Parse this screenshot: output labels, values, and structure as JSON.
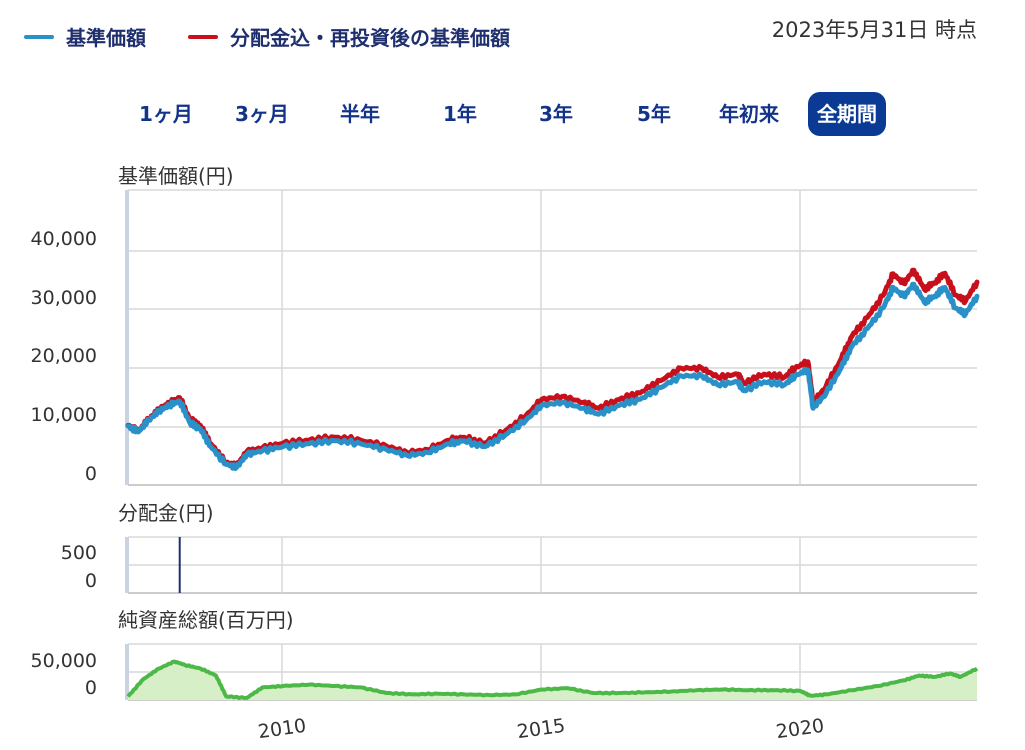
{
  "legend": {
    "items": [
      {
        "label": "基準価額",
        "color": "#2a90c8"
      },
      {
        "label": "分配金込・再投資後の基準価額",
        "color": "#c8101c"
      }
    ]
  },
  "as_of": "2023年5月31日 時点",
  "tabs": [
    {
      "label": "1ヶ月",
      "active": false
    },
    {
      "label": "3ヶ月",
      "active": false
    },
    {
      "label": "半年",
      "active": false
    },
    {
      "label": "1年",
      "active": false
    },
    {
      "label": "3年",
      "active": false
    },
    {
      "label": "5年",
      "active": false
    },
    {
      "label": "年初来",
      "active": false
    },
    {
      "label": "全期間",
      "active": true
    }
  ],
  "panels": {
    "nav_label": "基準価額(円)",
    "dist_label": "分配金(円)",
    "assets_label": "純資産総額(百万円)"
  },
  "chart_data": [
    {
      "type": "line",
      "title": "",
      "ylabel": "基準価額(円)",
      "ylim": [
        0,
        50000
      ],
      "yticks": [
        "0",
        "10,000",
        "20,000",
        "30,000",
        "40,000"
      ],
      "xlim": [
        2007.0,
        2023.42
      ],
      "xticks": [
        "2010",
        "2015",
        "2020"
      ],
      "grid": true,
      "series": [
        {
          "name": "基準価額",
          "color": "#2a90c8",
          "x": [
            2007.0,
            2007.2,
            2007.4,
            2007.6,
            2007.8,
            2008.0,
            2008.2,
            2008.4,
            2008.6,
            2008.9,
            2009.1,
            2009.3,
            2009.6,
            2010.0,
            2010.5,
            2011.0,
            2011.5,
            2012.0,
            2012.4,
            2012.8,
            2013.2,
            2013.5,
            2013.9,
            2014.3,
            2014.7,
            2015.0,
            2015.4,
            2015.8,
            2016.1,
            2016.5,
            2016.9,
            2017.3,
            2017.7,
            2018.1,
            2018.4,
            2018.8,
            2018.9,
            2019.3,
            2019.7,
            2019.9,
            2020.15,
            2020.25,
            2020.5,
            2020.8,
            2021.0,
            2021.3,
            2021.6,
            2021.8,
            2022.0,
            2022.2,
            2022.4,
            2022.6,
            2022.8,
            2023.0,
            2023.2,
            2023.42
          ],
          "y": [
            10000,
            9000,
            11000,
            12500,
            13500,
            14200,
            10500,
            9500,
            6500,
            3500,
            3000,
            5200,
            5800,
            6500,
            7000,
            7500,
            7000,
            6000,
            5000,
            5500,
            7000,
            7500,
            6500,
            8500,
            11000,
            13500,
            14000,
            13000,
            12000,
            13500,
            14500,
            16500,
            18500,
            18500,
            17000,
            17500,
            16000,
            17500,
            17000,
            18500,
            19500,
            13000,
            15500,
            20000,
            23500,
            26500,
            30000,
            33500,
            32000,
            34000,
            31000,
            32000,
            33500,
            30000,
            29000,
            32000
          ]
        },
        {
          "name": "分配金込・再投資後の基準価額",
          "color": "#c8101c",
          "x": [
            2007.0,
            2007.2,
            2007.4,
            2007.6,
            2007.8,
            2008.0,
            2008.2,
            2008.4,
            2008.6,
            2008.9,
            2009.1,
            2009.3,
            2009.6,
            2010.0,
            2010.5,
            2011.0,
            2011.5,
            2012.0,
            2012.4,
            2012.8,
            2013.2,
            2013.5,
            2013.9,
            2014.3,
            2014.7,
            2015.0,
            2015.4,
            2015.8,
            2016.1,
            2016.5,
            2016.9,
            2017.3,
            2017.7,
            2018.1,
            2018.4,
            2018.8,
            2018.9,
            2019.3,
            2019.7,
            2019.9,
            2020.15,
            2020.25,
            2020.5,
            2020.8,
            2021.0,
            2021.3,
            2021.6,
            2021.8,
            2022.0,
            2022.2,
            2022.4,
            2022.6,
            2022.8,
            2023.0,
            2023.2,
            2023.42
          ],
          "y": [
            10100,
            9100,
            11200,
            12800,
            13900,
            14800,
            11100,
            10100,
            7000,
            3800,
            3300,
            5700,
            6300,
            7100,
            7600,
            8100,
            7600,
            6600,
            5500,
            6000,
            7600,
            8100,
            7100,
            9200,
            11800,
            14500,
            15000,
            14000,
            13000,
            14500,
            15600,
            17700,
            19800,
            19800,
            18300,
            18800,
            17200,
            18800,
            18300,
            19800,
            20900,
            14000,
            16700,
            21500,
            25200,
            28400,
            32100,
            35800,
            34200,
            36400,
            33200,
            34300,
            35900,
            32200,
            31200,
            34400
          ]
        }
      ]
    },
    {
      "type": "bar",
      "title": "",
      "ylabel": "分配金(円)",
      "ylim": [
        0,
        700
      ],
      "yticks": [
        "0",
        "500"
      ],
      "xlim": [
        2007.0,
        2023.42
      ],
      "series": [
        {
          "name": "分配金",
          "x": [
            2008.0
          ],
          "y": [
            700
          ]
        }
      ]
    },
    {
      "type": "area",
      "title": "",
      "ylabel": "純資産総額(百万円)",
      "ylim": [
        0,
        80000
      ],
      "yticks": [
        "0",
        "50,000"
      ],
      "xlim": [
        2007.0,
        2023.42
      ],
      "xticks": [
        "2010",
        "2015",
        "2020"
      ],
      "series": [
        {
          "name": "純資産総額",
          "color": "#4cb848",
          "x": [
            2007.0,
            2007.3,
            2007.6,
            2007.9,
            2008.1,
            2008.4,
            2008.7,
            2008.9,
            2009.3,
            2009.6,
            2010.0,
            2010.5,
            2011.0,
            2011.5,
            2012.0,
            2012.5,
            2013.0,
            2013.5,
            2014.0,
            2014.5,
            2015.0,
            2015.5,
            2016.0,
            2016.5,
            2017.0,
            2017.5,
            2018.0,
            2018.5,
            2019.0,
            2019.5,
            2020.0,
            2020.2,
            2020.5,
            2021.0,
            2021.5,
            2022.0,
            2022.3,
            2022.6,
            2022.9,
            2023.1,
            2023.42
          ],
          "y": [
            5000,
            30000,
            45000,
            55000,
            50000,
            45000,
            35000,
            5000,
            3000,
            18000,
            20000,
            22000,
            20000,
            18000,
            10000,
            8000,
            9000,
            8000,
            7000,
            8000,
            15000,
            17000,
            10000,
            10000,
            11000,
            12000,
            14000,
            15000,
            14000,
            14000,
            13000,
            6000,
            8000,
            14000,
            20000,
            28000,
            35000,
            33000,
            38000,
            33000,
            45000
          ]
        }
      ]
    }
  ]
}
